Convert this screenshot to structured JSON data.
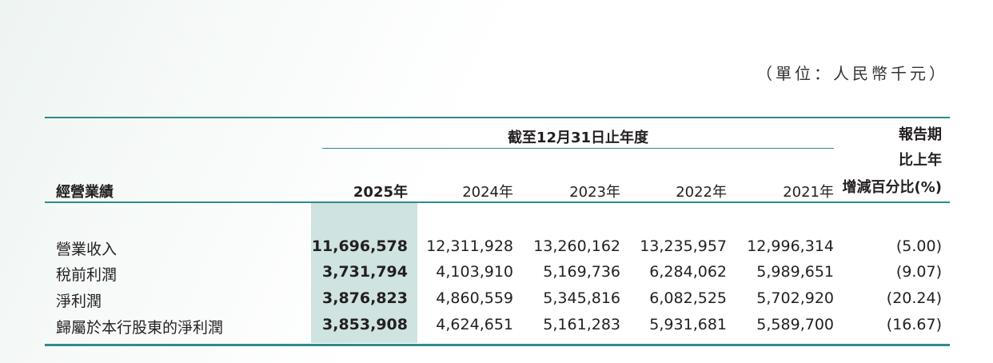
{
  "unit_note": "（單位：人民幣千元）",
  "header": {
    "section_label": "經營業績",
    "group_title": "截至12月31日止年度",
    "years": [
      "2025年",
      "2024年",
      "2023年",
      "2022年",
      "2021年"
    ],
    "change_header_lines": [
      "報告期",
      "比上年",
      "增減百分比(%)"
    ]
  },
  "rows": [
    {
      "label": "營業收入",
      "values": [
        "11,696,578",
        "12,311,928",
        "13,260,162",
        "13,235,957",
        "12,996,314"
      ],
      "change": "(5.00)"
    },
    {
      "label": "稅前利潤",
      "values": [
        "3,731,794",
        "4,103,910",
        "5,169,736",
        "6,284,062",
        "5,989,651"
      ],
      "change": "(9.07)"
    },
    {
      "label": "淨利潤",
      "values": [
        "3,876,823",
        "4,860,559",
        "5,345,816",
        "6,082,525",
        "5,702,920"
      ],
      "change": "(20.24)"
    },
    {
      "label": "歸屬於本行股東的淨利潤",
      "values": [
        "3,853,908",
        "4,624,651",
        "5,161,283",
        "5,931,681",
        "5,589,700"
      ],
      "change": "(16.67)"
    }
  ],
  "colors": {
    "accent_rule": "#2f8b8b",
    "highlight_column": "#cfe3e1",
    "text": "#231f20"
  }
}
